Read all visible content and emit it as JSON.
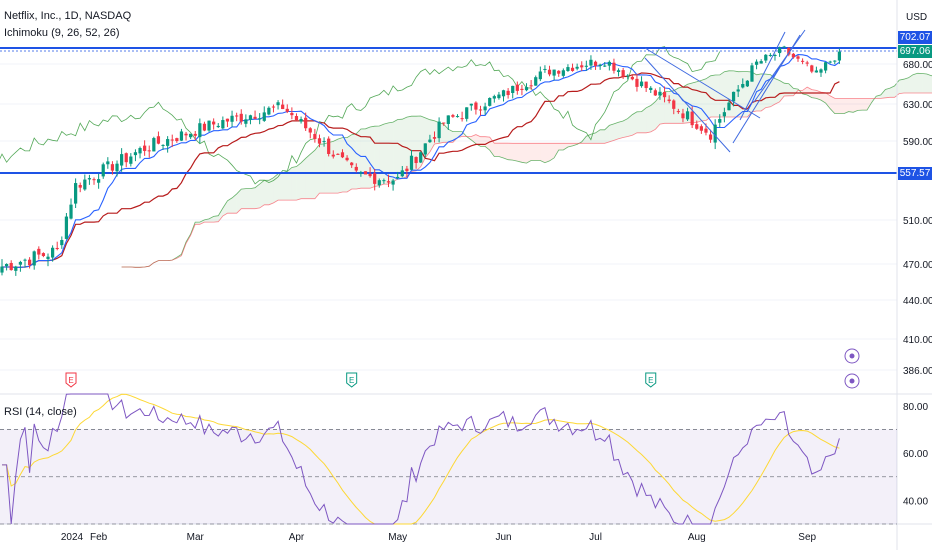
{
  "header": {
    "title": "Netflix, Inc., 1D, NASDAQ",
    "indicator": "Ichimoku (9, 26, 52, 26)",
    "currency": "USD"
  },
  "rsi_label": "RSI (14, close)",
  "price_tags": [
    {
      "text": "702.07",
      "color": "#1e53e5"
    },
    {
      "text": "697.06",
      "color": "#089981"
    },
    {
      "text": "557.57",
      "color": "#1e53e5"
    }
  ],
  "colors": {
    "up": "#089981",
    "down": "#f23645",
    "tenkan": "#2962ff",
    "kijun": "#b71c1c",
    "span_a": "#43a047",
    "span_b": "#f7525f",
    "hline": "#1e53e5",
    "rsi": "#7e57c2",
    "rsi_ma": "#fdd835"
  },
  "chart_data": [
    {
      "type": "candlestick",
      "title": "Netflix, Inc., 1D, NASDAQ",
      "x_ticks": [
        "2024",
        "Feb",
        "Mar",
        "Apr",
        "May",
        "Jun",
        "Jul",
        "Aug",
        "Sep"
      ],
      "y_ticks": [
        702.07,
        680.0,
        630.0,
        590.0,
        557.57,
        510.0,
        470.0,
        440.0,
        410.0,
        386.0
      ],
      "y_tick_labels": [
        "702.07",
        "680.00",
        "630.00",
        "590.00",
        "557.57",
        "510.00",
        "470.00",
        "440.00",
        "410.00",
        "386.00"
      ],
      "ylim": [
        370,
        715
      ],
      "horizontal_lines": [
        702.07,
        557.57
      ],
      "last_price": 697.06,
      "series_key_closes": [
        {
          "x": "2024-01-02",
          "close": 468
        },
        {
          "x": "2024-01-19",
          "close": 482
        },
        {
          "x": "2024-01-24",
          "close": 545
        },
        {
          "x": "2024-02-15",
          "close": 583
        },
        {
          "x": "2024-03-08",
          "close": 610
        },
        {
          "x": "2024-03-28",
          "close": 627
        },
        {
          "x": "2024-04-19",
          "close": 555
        },
        {
          "x": "2024-05-01",
          "close": 551
        },
        {
          "x": "2024-05-15",
          "close": 610
        },
        {
          "x": "2024-06-03",
          "close": 642
        },
        {
          "x": "2024-06-17",
          "close": 672
        },
        {
          "x": "2024-07-03",
          "close": 685
        },
        {
          "x": "2024-07-19",
          "close": 643
        },
        {
          "x": "2024-08-05",
          "close": 598
        },
        {
          "x": "2024-08-19",
          "close": 681
        },
        {
          "x": "2024-08-27",
          "close": 699
        },
        {
          "x": "2024-09-06",
          "close": 665
        },
        {
          "x": "2024-09-13",
          "close": 697
        }
      ],
      "earnings_markers": [
        "2024-01-23",
        "2024-04-18",
        "2024-07-18"
      ]
    },
    {
      "type": "line",
      "title": "RSI (14, close)",
      "y_ticks": [
        80.0,
        60.0,
        40.0
      ],
      "y_tick_labels": [
        "80.00",
        "60.00",
        "40.00"
      ],
      "ylim": [
        30,
        85
      ],
      "bands": [
        70,
        50,
        30
      ]
    }
  ]
}
